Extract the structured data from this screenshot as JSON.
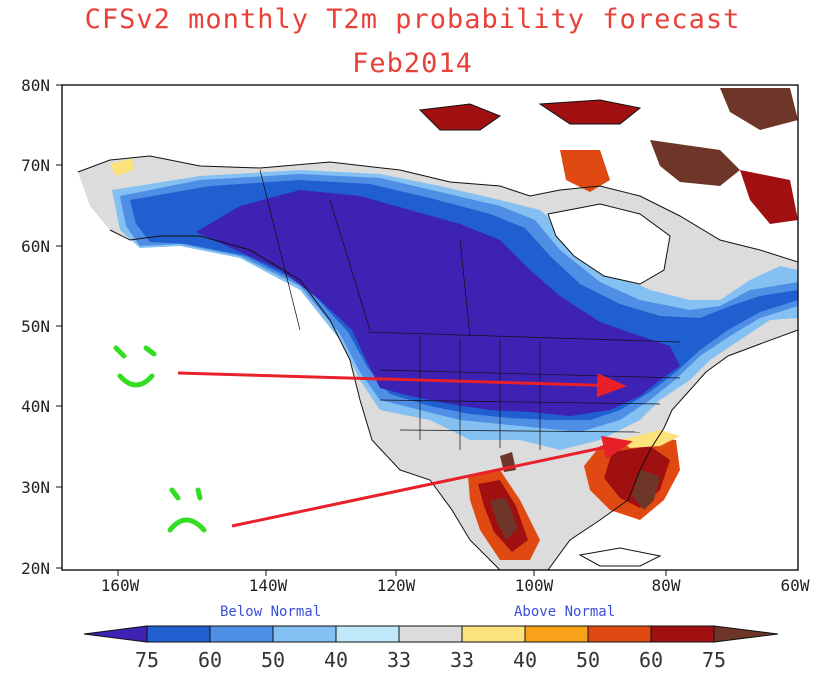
{
  "title_line1": "CFSv2 monthly T2m probability forecast",
  "title_line2": "Feb2014",
  "lat_labels": [
    "80N",
    "70N",
    "60N",
    "50N",
    "40N",
    "30N",
    "20N"
  ],
  "lon_labels": [
    "160W",
    "140W",
    "120W",
    "100W",
    "80W",
    "60W"
  ],
  "below_label": "Below Normal",
  "above_label": "Above Normal",
  "colorbar_labels": [
    "75",
    "60",
    "50",
    "40",
    "33",
    "33",
    "40",
    "50",
    "60",
    "75"
  ],
  "colorbar_colors": [
    "#3d22b4",
    "#1f5fd0",
    "#4e8ee4",
    "#84c0f2",
    "#bfe8fa",
    "#dcdcdc",
    "#fbe27a",
    "#f8a21a",
    "#e04a12",
    "#a01010",
    "#6e3628"
  ],
  "annotation_colors": {
    "arrow": "#e8202a",
    "faces": "#33dd22"
  }
}
